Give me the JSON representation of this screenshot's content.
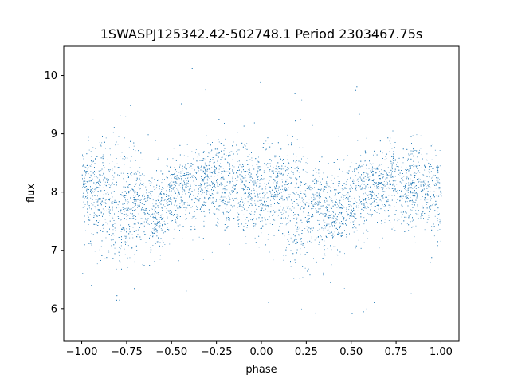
{
  "chart_data": {
    "type": "scatter",
    "title": "1SWASPJ125342.42-502748.1 Period 2303467.75s",
    "xlabel": "phase",
    "ylabel": "flux",
    "xlim": [
      -1.1,
      1.1
    ],
    "ylim": [
      5.45,
      10.5
    ],
    "xticks": [
      -1.0,
      -0.75,
      -0.5,
      -0.25,
      0.0,
      0.25,
      0.5,
      0.75,
      1.0
    ],
    "xtick_labels": [
      "−1.00",
      "−0.75",
      "−0.50",
      "−0.25",
      "0.00",
      "0.25",
      "0.50",
      "0.75",
      "1.00"
    ],
    "yticks": [
      6,
      7,
      8,
      9,
      10
    ],
    "ytick_labels": [
      "6",
      "7",
      "8",
      "9",
      "10"
    ],
    "grid": false,
    "marker_color": "#1f77b4",
    "series": [
      {
        "profile_phase": [
          -1.0,
          -0.9,
          -0.8,
          -0.7,
          -0.6,
          -0.5,
          -0.4,
          -0.3,
          -0.2,
          -0.1,
          0.0,
          0.1,
          0.2,
          0.3,
          0.4,
          0.5,
          0.6,
          0.7,
          0.8,
          0.9,
          1.0
        ],
        "profile_median_flux": [
          8.05,
          8.0,
          7.75,
          7.85,
          7.6,
          7.9,
          8.05,
          8.2,
          8.05,
          8.1,
          7.95,
          8.0,
          7.75,
          7.85,
          7.6,
          7.9,
          8.05,
          8.2,
          8.05,
          8.1,
          7.95
        ],
        "profile_scatter": [
          0.35,
          0.45,
          0.55,
          0.4,
          0.35,
          0.35,
          0.35,
          0.35,
          0.35,
          0.4,
          0.35,
          0.45,
          0.55,
          0.4,
          0.35,
          0.35,
          0.35,
          0.35,
          0.35,
          0.4,
          0.35
        ],
        "point_count": 9000
      }
    ]
  }
}
